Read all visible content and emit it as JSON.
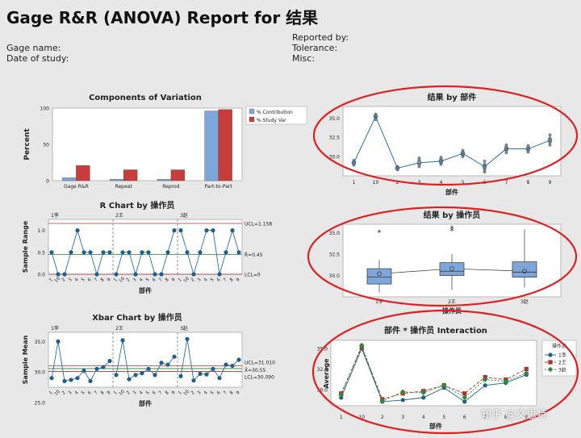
{
  "report": {
    "title": "Gage R&R (ANOVA) Report for 结果",
    "gage_name_label": "Gage name:",
    "date_label": "Date of study:",
    "reported_by_label": "Reported by:",
    "tolerance_label": "Tolerance:",
    "misc_label": "Misc:"
  },
  "watermark": "知乎 @文思特",
  "colors": {
    "contribution": "#7ea6d8",
    "study_var": "#c83c3c",
    "line": "#2d6f9f",
    "marker": "#1f5f8b",
    "limit": "#b03030",
    "highlight": "#e02020"
  },
  "chart_data": [
    {
      "type": "bar",
      "id": "components",
      "title": "Components of Variation",
      "ylabel": "Percent",
      "categories": [
        "Gage R&R",
        "Repeat",
        "Reprod",
        "Part-to-Part"
      ],
      "series": [
        {
          "name": "% Contribution",
          "values": [
            4,
            2,
            2,
            96
          ]
        },
        {
          "name": "% Study Var",
          "values": [
            21,
            15,
            15,
            98
          ]
        }
      ],
      "ylim": [
        0,
        100
      ],
      "yticks": [
        0,
        50,
        100
      ],
      "legend": "top-right"
    },
    {
      "type": "line",
      "id": "rchart",
      "title": "R Chart by 操作员",
      "ylabel": "Sample Range",
      "xlabel": "部件",
      "groups": [
        "1李",
        "2王",
        "3赵"
      ],
      "x_ticks": [
        "1",
        "10",
        "2",
        "3",
        "4",
        "5",
        "6",
        "7",
        "8",
        "9"
      ],
      "values": [
        0.5,
        0,
        0,
        0.5,
        1,
        0.5,
        0.5,
        0,
        0.5,
        0.5,
        0,
        0.5,
        0.5,
        0,
        0.5,
        0.5,
        0,
        0,
        0.5,
        1,
        1,
        0.5,
        0,
        0.5,
        1,
        1,
        0,
        0.5,
        1,
        0.5
      ],
      "ylim": [
        0,
        1.25
      ],
      "yticks": [
        "0.0",
        "0.5",
        "1.0"
      ],
      "ucl_value": 1.158,
      "center_value": 0.45,
      "lcl_value": 0,
      "ucl_label": "UCL=1.158",
      "center_label": "R̄=0.45",
      "lcl_label": "LCL=0"
    },
    {
      "type": "line",
      "id": "xbar",
      "title": "Xbar Chart by 操作员",
      "ylabel": "Sample Mean",
      "xlabel": "部件",
      "groups": [
        "1李",
        "2王",
        "3赵"
      ],
      "x_ticks": [
        "1",
        "10",
        "2",
        "3",
        "4",
        "5",
        "6",
        "7",
        "8",
        "9"
      ],
      "values": [
        29.0,
        35.0,
        28.5,
        28.7,
        29.0,
        30.2,
        28.5,
        30.5,
        30.8,
        31.8,
        29.5,
        35.2,
        28.8,
        29.5,
        29.8,
        30.5,
        29.5,
        31.5,
        31.2,
        32.5,
        29.3,
        35.4,
        28.6,
        29.7,
        29.6,
        30.5,
        29.0,
        31.2,
        31.0,
        32.0
      ],
      "ylim": [
        27.5,
        36.5
      ],
      "yticks": [
        "25.0",
        "30.0",
        "35.0"
      ],
      "ucl_value": 31.01,
      "center_value": 30.55,
      "lcl_value": 30.09,
      "ucl_label": "UCL=31.010",
      "center_label": "X̄=30.55",
      "lcl_label": "LCL=30.090"
    },
    {
      "type": "scatter",
      "id": "by_part",
      "title": "结果 by 部件",
      "xlabel": "部件",
      "categories": [
        "1",
        "10",
        "2",
        "3",
        "4",
        "5",
        "6",
        "7",
        "8",
        "9"
      ],
      "points": [
        [
          29,
          29.5,
          29.2,
          29.3,
          28.9,
          29.1
        ],
        [
          35.5,
          35,
          35.2,
          34.8,
          35.3,
          35.1
        ],
        [
          28.5,
          28.7,
          28.3,
          28.6,
          28.4,
          28.6
        ],
        [
          28.7,
          29.5,
          29.8,
          29.0,
          28.8,
          29.6
        ],
        [
          29.0,
          29.5,
          29.9,
          29.2,
          29.7,
          29.4
        ],
        [
          30.0,
          30.5,
          30.8,
          30.2,
          30.6,
          30.3
        ],
        [
          28.0,
          28.8,
          29.4,
          28.3,
          29.0,
          28.5
        ],
        [
          30.5,
          31.0,
          31.5,
          31.2,
          30.8,
          31.3
        ],
        [
          30.6,
          31.0,
          31.4,
          30.8,
          31.2,
          31.1
        ],
        [
          31.5,
          32.0,
          32.8,
          31.8,
          32.3,
          32.4
        ]
      ],
      "means": [
        29.2,
        35.2,
        28.5,
        29.2,
        29.4,
        30.4,
        28.7,
        31.0,
        31.0,
        32.1
      ],
      "ylim": [
        27.5,
        36.5
      ],
      "yticks": [
        "30.0",
        "32.5",
        "35.0"
      ]
    },
    {
      "type": "box",
      "id": "by_operator",
      "title": "结果 by 操作员",
      "xlabel": "操作员",
      "categories": [
        "1李",
        "2王",
        "3赵"
      ],
      "boxes": [
        {
          "min": 28.0,
          "q1": 29.0,
          "median": 29.8,
          "q3": 30.8,
          "max": 31.8,
          "mean": 30.2,
          "outliers": [
            35.0
          ]
        },
        {
          "min": 28.3,
          "q1": 30.0,
          "median": 30.5,
          "q3": 31.5,
          "max": 32.5,
          "mean": 30.8,
          "outliers": [
            35.2,
            35.5
          ]
        },
        {
          "min": 28.6,
          "q1": 29.8,
          "median": 30.4,
          "q3": 31.6,
          "max": 35.4,
          "mean": 30.5,
          "outliers": []
        }
      ],
      "ylim": [
        27.5,
        36.0
      ],
      "yticks": [
        "30.0",
        "32.5",
        "35.0"
      ]
    },
    {
      "type": "line",
      "id": "interaction",
      "title": "部件 * 操作员 Interaction",
      "ylabel": "Average",
      "xlabel": "部件",
      "legend_title": "操作员",
      "x_ticks": [
        "1",
        "10",
        "2",
        "3",
        "4",
        "5",
        "6",
        "7",
        "8",
        "9"
      ],
      "series": [
        {
          "name": "1李",
          "values": [
            29.0,
            35.0,
            28.5,
            28.7,
            29.0,
            30.2,
            28.5,
            30.5,
            30.8,
            31.8
          ]
        },
        {
          "name": "2王",
          "values": [
            29.5,
            35.2,
            28.8,
            29.5,
            29.8,
            30.5,
            29.5,
            31.5,
            31.2,
            32.5
          ]
        },
        {
          "name": "3赵",
          "values": [
            29.3,
            35.4,
            28.6,
            29.7,
            29.6,
            30.5,
            29.0,
            31.2,
            31.0,
            32.0
          ]
        }
      ],
      "ylim": [
        28.0,
        36.0
      ],
      "yticks": [
        "30.0",
        "32.5",
        "35.0"
      ],
      "legend": "right"
    }
  ]
}
